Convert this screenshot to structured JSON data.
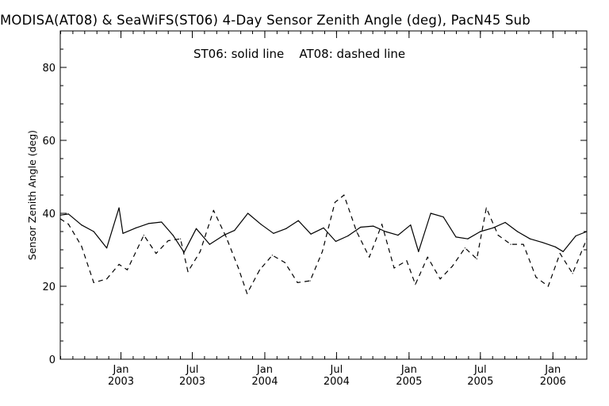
{
  "title": "MODISA(AT08) & SeaWiFS(ST06) 4-Day Sensor Zenith Angle (deg), PacN45 Sub",
  "legend_text": "ST06: solid line    AT08: dashed line",
  "chart_data": {
    "type": "line",
    "title": "MODISA(AT08) & SeaWiFS(ST06) 4-Day Sensor Zenith Angle (deg), PacN45 Sub",
    "xlabel": "",
    "ylabel": "Sensor Zenith Angle (deg)",
    "ylim": [
      0,
      90
    ],
    "xlim": [
      "2002-07-31",
      "2006-03-28"
    ],
    "y_ticks": [
      0,
      20,
      40,
      60,
      80
    ],
    "x_ticks": [
      {
        "month": "Jan",
        "year": "2003",
        "date": "2003-01-01"
      },
      {
        "month": "Jul",
        "year": "2003",
        "date": "2003-07-01"
      },
      {
        "month": "Jan",
        "year": "2004",
        "date": "2004-01-01"
      },
      {
        "month": "Jul",
        "year": "2004",
        "date": "2004-07-01"
      },
      {
        "month": "Jan",
        "year": "2005",
        "date": "2005-01-01"
      },
      {
        "month": "Jul",
        "year": "2005",
        "date": "2005-07-01"
      },
      {
        "month": "Jan",
        "year": "2006",
        "date": "2006-01-01"
      }
    ],
    "grid": false,
    "series": [
      {
        "name": "ST06",
        "style": "solid",
        "points": [
          [
            "2002-07-31",
            39.5
          ],
          [
            "2002-08-21",
            39.8
          ],
          [
            "2002-09-23",
            36.8
          ],
          [
            "2002-10-24",
            35.0
          ],
          [
            "2002-11-26",
            30.5
          ],
          [
            "2002-12-27",
            41.5
          ],
          [
            "2003-01-06",
            34.5
          ],
          [
            "2003-02-08",
            36.0
          ],
          [
            "2003-03-12",
            37.2
          ],
          [
            "2003-04-14",
            37.6
          ],
          [
            "2003-05-13",
            34.0
          ],
          [
            "2003-06-10",
            29.3
          ],
          [
            "2003-07-11",
            35.8
          ],
          [
            "2003-08-14",
            31.5
          ],
          [
            "2003-09-19",
            34.0
          ],
          [
            "2003-10-16",
            35.3
          ],
          [
            "2003-11-19",
            40.0
          ],
          [
            "2003-12-22",
            37.0
          ],
          [
            "2004-01-23",
            34.5
          ],
          [
            "2004-02-24",
            35.8
          ],
          [
            "2004-03-26",
            38.0
          ],
          [
            "2004-04-27",
            34.3
          ],
          [
            "2004-05-29",
            36.0
          ],
          [
            "2004-06-29",
            32.3
          ],
          [
            "2004-07-30",
            33.8
          ],
          [
            "2004-08-31",
            36.2
          ],
          [
            "2004-10-02",
            36.5
          ],
          [
            "2004-11-02",
            35.0
          ],
          [
            "2004-12-04",
            34.0
          ],
          [
            "2005-01-05",
            36.8
          ],
          [
            "2005-01-25",
            29.5
          ],
          [
            "2005-02-25",
            40.0
          ],
          [
            "2005-03-29",
            39.0
          ],
          [
            "2005-04-30",
            33.5
          ],
          [
            "2005-05-30",
            33.0
          ],
          [
            "2005-07-01",
            35.0
          ],
          [
            "2005-08-02",
            36.0
          ],
          [
            "2005-09-02",
            37.5
          ],
          [
            "2005-10-03",
            35.0
          ],
          [
            "2005-11-04",
            33.0
          ],
          [
            "2005-12-06",
            32.0
          ],
          [
            "2006-01-07",
            30.8
          ],
          [
            "2006-01-27",
            29.5
          ],
          [
            "2006-02-28",
            33.8
          ],
          [
            "2006-03-28",
            35.0
          ]
        ]
      },
      {
        "name": "AT08",
        "style": "dashed",
        "points": [
          [
            "2002-07-31",
            38.5
          ],
          [
            "2002-08-21",
            37.0
          ],
          [
            "2002-09-23",
            31.0
          ],
          [
            "2002-10-24",
            21.0
          ],
          [
            "2002-11-26",
            22.0
          ],
          [
            "2002-12-27",
            26.0
          ],
          [
            "2003-01-17",
            24.5
          ],
          [
            "2003-02-28",
            34.0
          ],
          [
            "2003-03-31",
            29.0
          ],
          [
            "2003-05-01",
            32.5
          ],
          [
            "2003-06-01",
            33.0
          ],
          [
            "2003-06-20",
            24.0
          ],
          [
            "2003-07-21",
            29.5
          ],
          [
            "2003-08-24",
            40.8
          ],
          [
            "2003-09-25",
            33.5
          ],
          [
            "2003-10-26",
            25.0
          ],
          [
            "2003-11-17",
            18.0
          ],
          [
            "2003-12-19",
            24.5
          ],
          [
            "2004-01-20",
            28.5
          ],
          [
            "2004-02-21",
            26.5
          ],
          [
            "2004-03-24",
            21.0
          ],
          [
            "2004-04-25",
            21.5
          ],
          [
            "2004-05-26",
            29.5
          ],
          [
            "2004-06-27",
            43.0
          ],
          [
            "2004-07-20",
            45.0
          ],
          [
            "2004-08-21",
            35.0
          ],
          [
            "2004-09-22",
            28.0
          ],
          [
            "2004-10-24",
            37.0
          ],
          [
            "2004-11-24",
            25.0
          ],
          [
            "2004-12-26",
            27.0
          ],
          [
            "2005-01-17",
            20.5
          ],
          [
            "2005-02-17",
            28.0
          ],
          [
            "2005-03-21",
            22.0
          ],
          [
            "2005-04-21",
            25.5
          ],
          [
            "2005-05-23",
            30.5
          ],
          [
            "2005-06-22",
            27.5
          ],
          [
            "2005-07-16",
            41.5
          ],
          [
            "2005-08-15",
            34.0
          ],
          [
            "2005-09-16",
            31.5
          ],
          [
            "2005-10-18",
            31.5
          ],
          [
            "2005-11-19",
            22.5
          ],
          [
            "2005-12-20",
            20.0
          ],
          [
            "2006-01-19",
            29.0
          ],
          [
            "2006-02-20",
            23.5
          ],
          [
            "2006-03-28",
            33.0
          ]
        ]
      }
    ]
  }
}
